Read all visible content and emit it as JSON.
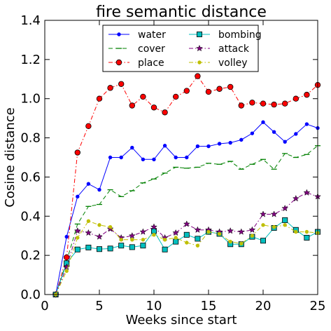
{
  "chart_data": {
    "type": "line",
    "title": "fire semantic distance",
    "xlabel": "Weeks since start",
    "ylabel": "Cosine distance",
    "xlim": [
      0,
      25
    ],
    "ylim": [
      0.0,
      1.4
    ],
    "xticks": [
      0,
      5,
      10,
      15,
      20,
      25
    ],
    "yticks": [
      0.0,
      0.2,
      0.4,
      0.6,
      0.8,
      1.0,
      1.2,
      1.4
    ],
    "ytick_labels": [
      "0.0",
      "0.2",
      "0.4",
      "0.6",
      "0.8",
      "1.0",
      "1.2",
      "1.4"
    ],
    "grid": false,
    "legend_position": "top-center",
    "x": [
      1,
      2,
      3,
      4,
      5,
      6,
      7,
      8,
      9,
      10,
      11,
      12,
      13,
      14,
      15,
      16,
      17,
      18,
      19,
      20,
      21,
      22,
      23,
      24,
      25
    ],
    "series": [
      {
        "name": "water",
        "color": "#0000ff",
        "marker": "point",
        "dash": "solid",
        "values": [
          0.0,
          0.295,
          0.5,
          0.565,
          0.535,
          0.7,
          0.7,
          0.75,
          0.69,
          0.69,
          0.76,
          0.7,
          0.7,
          0.757,
          0.757,
          0.77,
          0.775,
          0.79,
          0.823,
          0.88,
          0.83,
          0.78,
          0.82,
          0.87,
          0.85
        ]
      },
      {
        "name": "cover",
        "color": "#008000",
        "marker": "hline",
        "dash": "dashed",
        "values": [
          0.0,
          0.17,
          0.36,
          0.45,
          0.46,
          0.535,
          0.5,
          0.53,
          0.57,
          0.59,
          0.62,
          0.65,
          0.645,
          0.65,
          0.67,
          0.665,
          0.68,
          0.64,
          0.665,
          0.69,
          0.64,
          0.72,
          0.7,
          0.715,
          0.76
        ]
      },
      {
        "name": "place",
        "color": "#ff0000",
        "marker": "circle",
        "dash": "dashdot",
        "values": [
          0.0,
          0.19,
          0.725,
          0.86,
          1.0,
          1.055,
          1.075,
          0.965,
          1.01,
          0.955,
          0.93,
          1.01,
          1.04,
          1.115,
          1.035,
          1.05,
          1.06,
          0.965,
          0.98,
          0.975,
          0.97,
          0.975,
          1.0,
          1.02,
          1.07
        ]
      },
      {
        "name": "bombing",
        "color": "#00bfbf",
        "marker": "square",
        "dash": "solid",
        "values": [
          0.0,
          0.16,
          0.23,
          0.24,
          0.232,
          0.235,
          0.25,
          0.242,
          0.25,
          0.325,
          0.23,
          0.27,
          0.305,
          0.285,
          0.32,
          0.31,
          0.257,
          0.257,
          0.295,
          0.275,
          0.34,
          0.38,
          0.33,
          0.29,
          0.32
        ]
      },
      {
        "name": "attack",
        "color": "#800080",
        "marker": "star",
        "dash": "dashdot",
        "values": [
          0.0,
          0.14,
          0.325,
          0.315,
          0.295,
          0.335,
          0.29,
          0.3,
          0.32,
          0.345,
          0.29,
          0.315,
          0.36,
          0.33,
          0.33,
          0.32,
          0.325,
          0.32,
          0.33,
          0.41,
          0.41,
          0.44,
          0.49,
          0.52,
          0.5
        ]
      },
      {
        "name": "volley",
        "color": "#bfbf00",
        "marker": "point",
        "dash": "dashdot",
        "values": [
          0.0,
          0.12,
          0.29,
          0.375,
          0.355,
          0.345,
          0.28,
          0.28,
          0.28,
          0.305,
          0.28,
          0.29,
          0.265,
          0.25,
          0.32,
          0.31,
          0.27,
          0.26,
          0.3,
          0.355,
          0.345,
          0.355,
          0.32,
          0.32,
          0.315
        ]
      }
    ]
  }
}
